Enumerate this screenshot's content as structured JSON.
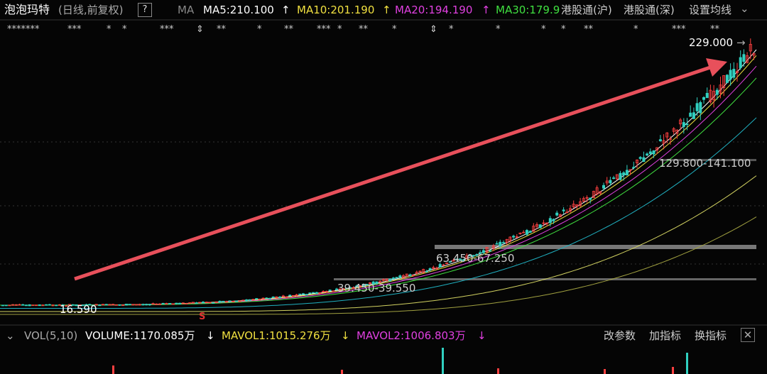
{
  "header": {
    "title": "泡泡玛特",
    "period": "(日线,前复权)",
    "help": "?",
    "ma_label": "MA",
    "ma": [
      {
        "text": "MA5:210.100",
        "arrow": "↑"
      },
      {
        "text": "MA10:201.190",
        "arrow": "↑"
      },
      {
        "text": "MA20:194.190",
        "arrow": "↑"
      },
      {
        "text": "MA30:179.9"
      }
    ],
    "buttons": [
      "港股通(沪)",
      "港股通(深)",
      "设置均线"
    ]
  },
  "masked_row": [
    "*******",
    "***",
    "*",
    "*",
    "***",
    "⇕",
    "**",
    "*",
    "**",
    "***",
    "*",
    "**",
    "*",
    "⇕",
    "*",
    "*",
    "*",
    "*",
    "**",
    "*",
    "***",
    "**"
  ],
  "price_labels": {
    "high": "229.000",
    "zone1": "129.800-141.100",
    "zone2": "63.450-67.250",
    "zone3": "39.450-39.550",
    "low": "16.590",
    "marker": "S"
  },
  "volume": {
    "name": "VOL(5,10)",
    "volume": "VOLUME:1170.085万",
    "mavol1": "MAVOL1:1015.276万",
    "mavol2": "MAVOL2:1006.803万",
    "arrow": "↓",
    "buttons": [
      "改参数",
      "加指标",
      "换指标"
    ]
  }
}
